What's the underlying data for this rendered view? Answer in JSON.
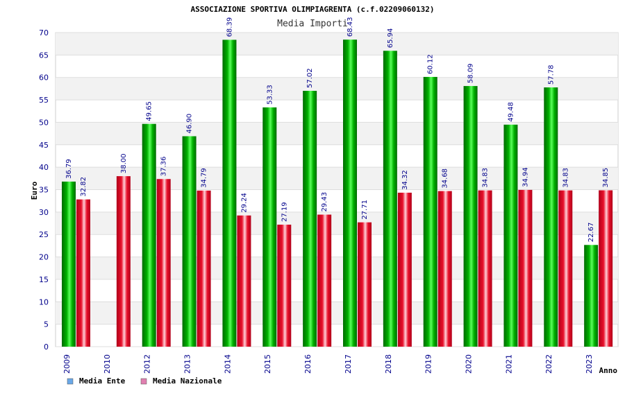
{
  "chart_data": {
    "type": "bar",
    "title": "ASSOCIAZIONE SPORTIVA OLIMPIAGRENTA (c.f.02209060132)",
    "subtitle": "Media Importi",
    "xlabel": "Anno",
    "ylabel": "Euro",
    "ylim": [
      0,
      70
    ],
    "ytick_step": 5,
    "grid": true,
    "legend_position": "bottom-left",
    "categories": [
      "2009",
      "2010",
      "2012",
      "2013",
      "2014",
      "2015",
      "2016",
      "2017",
      "2018",
      "2019",
      "2020",
      "2021",
      "2022",
      "2023"
    ],
    "series": [
      {
        "name": "Media Ente",
        "color": "#00b000",
        "legend_color": "#6aa8e8",
        "values": [
          36.79,
          null,
          49.65,
          46.9,
          68.39,
          53.33,
          57.02,
          68.43,
          65.94,
          60.12,
          58.09,
          49.48,
          57.78,
          22.67
        ],
        "labels": [
          "36.79",
          "",
          "49.65",
          "46.90",
          "68.39",
          "53.33",
          "57.02",
          "68.43",
          "65.94",
          "60.12",
          "58.09",
          "49.48",
          "57.78",
          "22.67"
        ]
      },
      {
        "name": "Media Nazionale",
        "color": "#e8102a",
        "legend_color": "#e080b0",
        "values": [
          32.82,
          38.0,
          37.36,
          34.79,
          29.24,
          27.19,
          29.43,
          27.71,
          34.32,
          34.68,
          34.83,
          34.94,
          34.83,
          34.85
        ],
        "labels": [
          "32.82",
          "38.00",
          "37.36",
          "34.79",
          "29.24",
          "27.19",
          "29.43",
          "27.71",
          "34.32",
          "34.68",
          "34.83",
          "34.94",
          "34.83",
          "34.85"
        ]
      }
    ]
  }
}
